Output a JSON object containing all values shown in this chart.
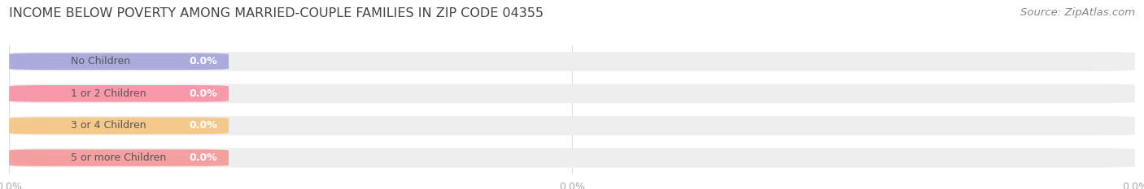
{
  "title": "INCOME BELOW POVERTY AMONG MARRIED-COUPLE FAMILIES IN ZIP CODE 04355",
  "source": "Source: ZipAtlas.com",
  "categories": [
    "No Children",
    "1 or 2 Children",
    "3 or 4 Children",
    "5 or more Children"
  ],
  "values": [
    0.0,
    0.0,
    0.0,
    0.0
  ],
  "bar_colors": [
    "#aaaadd",
    "#f799aa",
    "#f5c98a",
    "#f5a0a0"
  ],
  "bar_bg_color": "#eeeeee",
  "background_color": "#ffffff",
  "label_color": "#ffffff",
  "title_fontsize": 11.5,
  "source_fontsize": 9.5,
  "tick_fontsize": 9,
  "bar_label_fontsize": 9,
  "category_fontsize": 9,
  "tick_label_color": "#aaaaaa",
  "category_text_color": "#555555",
  "source_color": "#888888"
}
